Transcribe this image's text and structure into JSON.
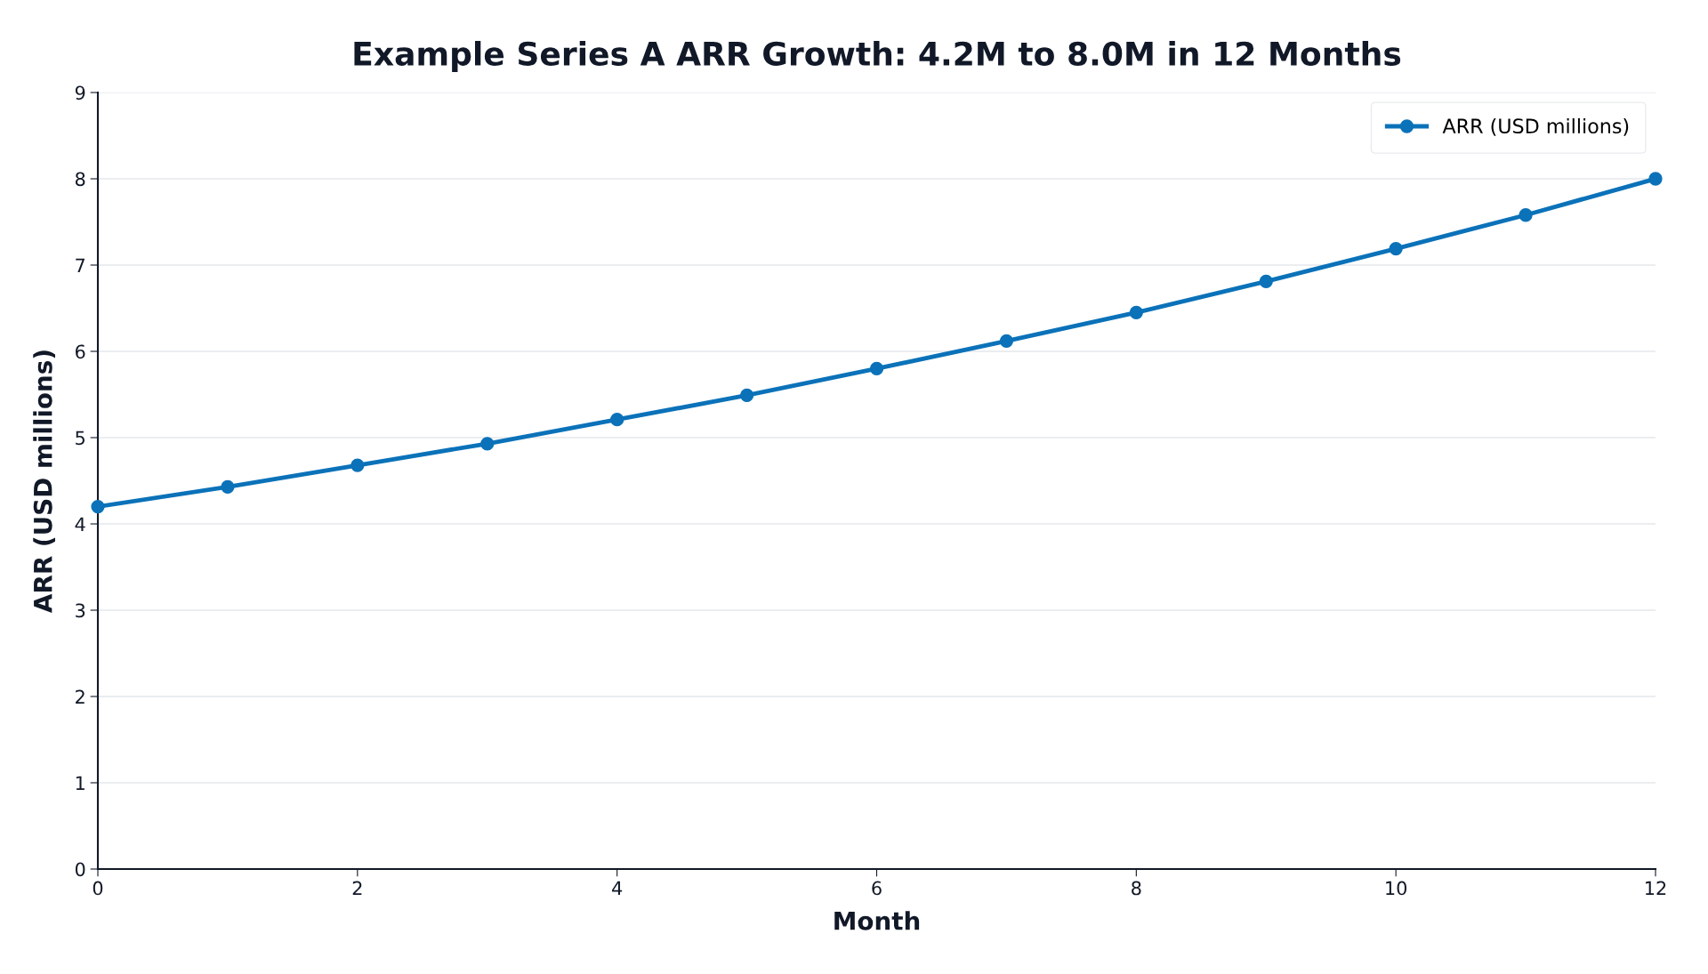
{
  "chart_data": {
    "type": "line",
    "title": "Example Series A ARR Growth: 4.2M to 8.0M in 12 Months",
    "xlabel": "Month",
    "ylabel": "ARR (USD millions)",
    "x": [
      0,
      1,
      2,
      3,
      4,
      5,
      6,
      7,
      8,
      9,
      10,
      11,
      12
    ],
    "series": [
      {
        "name": "ARR (USD millions)",
        "color": "#0b72b9",
        "values": [
          4.2,
          4.43,
          4.68,
          4.93,
          5.21,
          5.49,
          5.8,
          6.12,
          6.45,
          6.81,
          7.19,
          7.58,
          8.0
        ]
      }
    ],
    "xlim": [
      0,
      12
    ],
    "xticks": [
      0,
      2,
      4,
      6,
      8,
      10,
      12
    ],
    "ylim": [
      0,
      9
    ],
    "yticks": [
      0,
      1,
      2,
      3,
      4,
      5,
      6,
      7,
      8,
      9
    ],
    "grid": "y",
    "legend": "top right",
    "marker": "circle",
    "line_style": "solid"
  }
}
